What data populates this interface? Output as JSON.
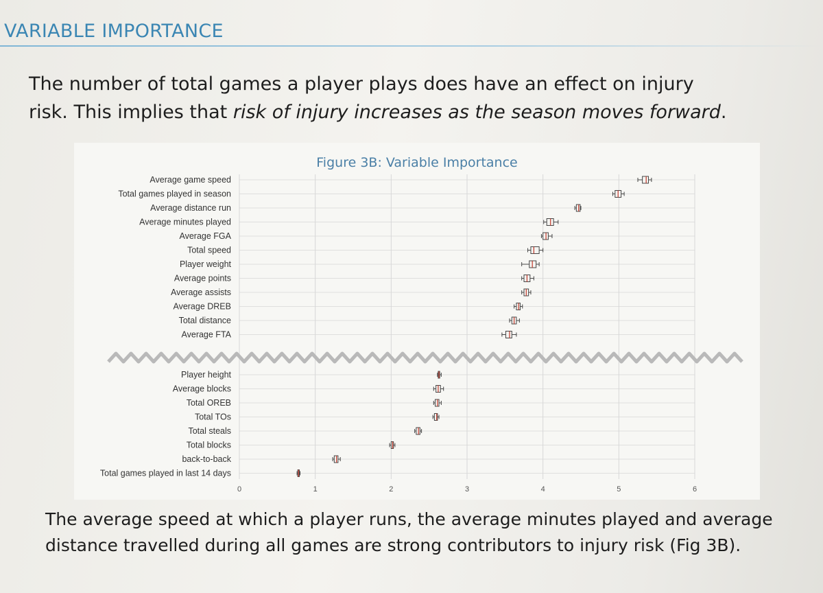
{
  "section_title": "VARIABLE IMPORTANCE",
  "intro": {
    "line1": "The number of total games a player plays does have an effect on injury",
    "line2_prefix": "risk. This implies that ",
    "line2_emphasis": "risk of injury increases as the season moves forward",
    "line2_suffix": "."
  },
  "outro": "The average speed at which a player runs, the average minutes played and average distance travelled during all games are strong contributors to injury risk (Fig 3B).",
  "chart_data": {
    "type": "boxplot",
    "title": "Figure 3B: Variable Importance",
    "xlabel": "",
    "ylabel": "",
    "xlim": [
      0,
      6
    ],
    "xticks": [
      "0",
      "1",
      "2",
      "3",
      "4",
      "5",
      "6"
    ],
    "grid": true,
    "axis_break": "between Average FTA and Player height",
    "groups": [
      {
        "items": [
          {
            "label": "Average game speed",
            "min": 5.25,
            "q1": 5.31,
            "median": 5.36,
            "q3": 5.39,
            "max": 5.43
          },
          {
            "label": "Total games played in season",
            "min": 4.92,
            "q1": 4.95,
            "median": 4.99,
            "q3": 5.03,
            "max": 5.07
          },
          {
            "label": "Average distance run",
            "min": 4.42,
            "q1": 4.44,
            "median": 4.47,
            "q3": 4.49,
            "max": 4.5
          },
          {
            "label": "Average minutes played",
            "min": 4.01,
            "q1": 4.05,
            "median": 4.1,
            "q3": 4.14,
            "max": 4.2
          },
          {
            "label": "Average FGA",
            "min": 3.98,
            "q1": 4.0,
            "median": 4.04,
            "q3": 4.07,
            "max": 4.12
          },
          {
            "label": "Total speed",
            "min": 3.8,
            "q1": 3.84,
            "median": 3.88,
            "q3": 3.95,
            "max": 4.0
          },
          {
            "label": "Player weight",
            "min": 3.72,
            "q1": 3.82,
            "median": 3.86,
            "q3": 3.91,
            "max": 3.95
          },
          {
            "label": "Average points",
            "min": 3.72,
            "q1": 3.75,
            "median": 3.79,
            "q3": 3.83,
            "max": 3.88
          },
          {
            "label": "Average assists",
            "min": 3.72,
            "q1": 3.75,
            "median": 3.78,
            "q3": 3.81,
            "max": 3.84
          },
          {
            "label": "Average DREB",
            "min": 3.62,
            "q1": 3.65,
            "median": 3.68,
            "q3": 3.7,
            "max": 3.73
          },
          {
            "label": "Total distance",
            "min": 3.56,
            "q1": 3.59,
            "median": 3.62,
            "q3": 3.65,
            "max": 3.69
          },
          {
            "label": "Average FTA",
            "min": 3.46,
            "q1": 3.51,
            "median": 3.56,
            "q3": 3.59,
            "max": 3.65
          }
        ]
      },
      {
        "items": [
          {
            "label": "Player height",
            "min": 2.61,
            "q1": 2.62,
            "median": 2.63,
            "q3": 2.64,
            "max": 2.66
          },
          {
            "label": "Average blocks",
            "min": 2.56,
            "q1": 2.59,
            "median": 2.62,
            "q3": 2.65,
            "max": 2.69
          },
          {
            "label": "Total OREB",
            "min": 2.56,
            "q1": 2.58,
            "median": 2.61,
            "q3": 2.63,
            "max": 2.66
          },
          {
            "label": "Total TOs",
            "min": 2.55,
            "q1": 2.57,
            "median": 2.6,
            "q3": 2.61,
            "max": 2.63
          },
          {
            "label": "Total steals",
            "min": 2.31,
            "q1": 2.33,
            "median": 2.36,
            "q3": 2.38,
            "max": 2.4
          },
          {
            "label": "Total blocks",
            "min": 1.98,
            "q1": 2.0,
            "median": 2.02,
            "q3": 2.03,
            "max": 2.05
          },
          {
            "label": "back-to-back",
            "min": 1.23,
            "q1": 1.25,
            "median": 1.28,
            "q3": 1.3,
            "max": 1.33
          },
          {
            "label": "Total games played in last 14 days",
            "min": 0.76,
            "q1": 0.77,
            "median": 0.78,
            "q3": 0.79,
            "max": 0.8
          }
        ]
      }
    ],
    "colors": {
      "box_stroke": "#444444",
      "median": "#c0392b",
      "grid": "#d7d7d7",
      "break_line": "#b9b9b9"
    }
  }
}
